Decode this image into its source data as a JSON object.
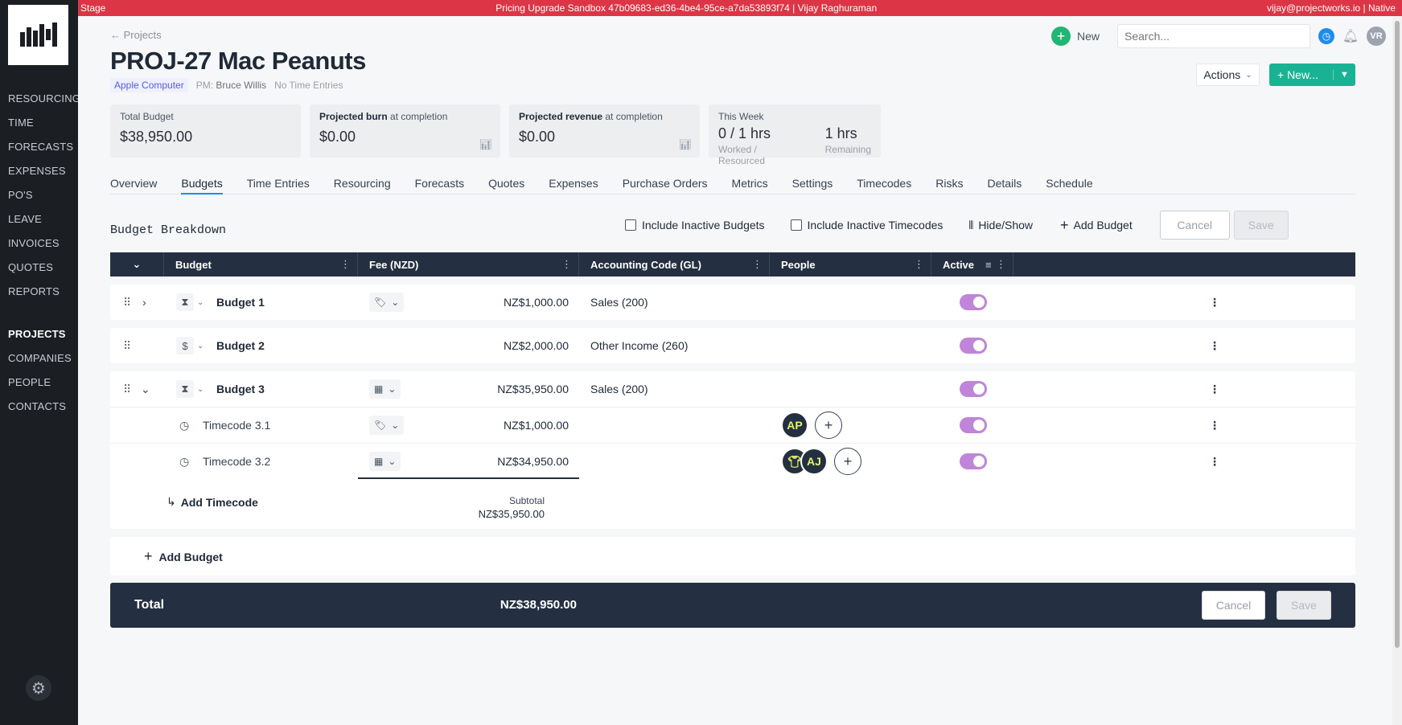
{
  "banner": {
    "env": "Stage",
    "center": "Pricing Upgrade Sandbox 47b09683-ed36-4be4-95ce-a7da53893f74 | Vijay Raghuraman",
    "right": "vijay@projectworks.io | Native"
  },
  "sidebar": {
    "items": [
      "RESOURCING",
      "TIME",
      "FORECASTS",
      "EXPENSES",
      "PO'S",
      "LEAVE",
      "INVOICES",
      "QUOTES",
      "REPORTS"
    ],
    "items2": [
      "PROJECTS",
      "COMPANIES",
      "PEOPLE",
      "CONTACTS"
    ],
    "active": "PROJECTS"
  },
  "header": {
    "back": "← Projects",
    "new_label": "New",
    "search_placeholder": "Search...",
    "user_initials": "VR",
    "title": "PROJ-27  Mac Peanuts",
    "company": "Apple Computer",
    "pm_prefix": "PM:",
    "pm_name": "Bruce Willis",
    "time_entries": "No Time Entries",
    "actions_label": "Actions",
    "new_button": "+  New..."
  },
  "cards": {
    "total_budget": {
      "label": "Total Budget",
      "value": "$38,950.00"
    },
    "projected_burn": {
      "label_bold": "Projected burn",
      "label_rest": " at completion",
      "value": "$0.00"
    },
    "projected_revenue": {
      "label_bold": "Projected revenue",
      "label_rest": " at completion",
      "value": "$0.00"
    },
    "this_week": {
      "label": "This Week",
      "worked_value": "0 / 1 hrs",
      "worked_sub": "Worked / Resourced",
      "remaining_value": "1 hrs",
      "remaining_sub": "Remaining"
    }
  },
  "tabs": [
    "Overview",
    "Budgets",
    "Time Entries",
    "Resourcing",
    "Forecasts",
    "Quotes",
    "Expenses",
    "Purchase Orders",
    "Metrics",
    "Settings",
    "Timecodes",
    "Risks",
    "Details",
    "Schedule"
  ],
  "active_tab": "Budgets",
  "toolbar": {
    "title": "Budget Breakdown",
    "include_inactive_budgets": "Include Inactive Budgets",
    "include_inactive_timecodes": "Include Inactive Timecodes",
    "hide_show": "Hide/Show",
    "add_budget": "Add Budget",
    "cancel": "Cancel",
    "save": "Save"
  },
  "table": {
    "columns": [
      "Budget",
      "Fee (NZD)",
      "Accounting Code (GL)",
      "People",
      "Active"
    ],
    "budgets": [
      {
        "name": "Budget 1",
        "amount": "NZ$1,000.00",
        "account": "Sales (200)"
      },
      {
        "name": "Budget 2",
        "amount": "NZ$2,000.00",
        "account": "Other Income (260)"
      },
      {
        "name": "Budget 3",
        "amount": "NZ$35,950.00",
        "account": "Sales (200)"
      }
    ],
    "timecodes": [
      {
        "name": "Timecode 3.1",
        "amount": "NZ$1,000.00",
        "people": [
          "AP"
        ]
      },
      {
        "name": "Timecode 3.2",
        "amount": "NZ$34,950.00",
        "people": [
          "AJ"
        ]
      }
    ],
    "add_timecode": "Add Timecode",
    "subtotal_label": "Subtotal",
    "subtotal_value": "NZ$35,950.00",
    "add_budget": "Add Budget"
  },
  "total": {
    "label": "Total",
    "value": "NZ$38,950.00",
    "cancel": "Cancel",
    "save": "Save"
  }
}
